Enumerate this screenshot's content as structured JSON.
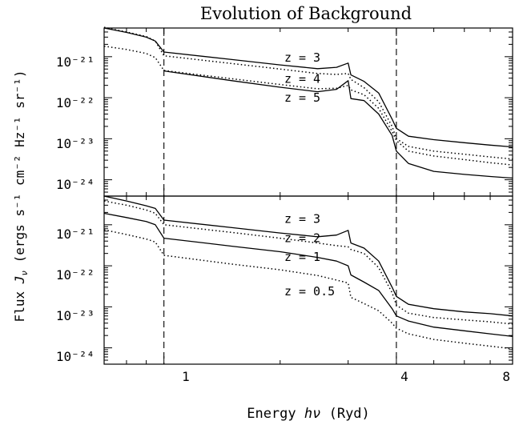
{
  "title": "Evolution of Background",
  "xlabel": {
    "prefix": "Energy ",
    "sym": "hν",
    "suffix": " (Ryd)"
  },
  "ylabel": {
    "prefix": "Flux ",
    "sym": "J",
    "sub": "ν",
    "units": " (ergs s⁻¹ cm⁻² Hz⁻¹ sr⁻¹)"
  },
  "x_ticks": [
    {
      "value": 1,
      "label": "1"
    },
    {
      "value": 4,
      "label": "4"
    },
    {
      "value": 8,
      "label": "8"
    }
  ],
  "y_tick_labels": [
    "10⁻²¹",
    "10⁻²²",
    "10⁻²³",
    "10⁻²⁴"
  ],
  "chart_data": [
    {
      "type": "line",
      "panel": "top",
      "x_scale": "log",
      "y_scale": "log",
      "xlim": [
        0.7,
        8
      ],
      "ylim": [
        4e-25,
        5e-21
      ],
      "reference_lines_x": [
        1,
        4
      ],
      "annotations": [
        {
          "text": "z = 3",
          "x": 2.05,
          "y": 7.5e-22
        },
        {
          "text": "z = 4",
          "x": 2.05,
          "y": 2.3e-22
        },
        {
          "text": "z = 5",
          "x": 2.05,
          "y": 8e-23
        }
      ],
      "series": [
        {
          "style": "solid",
          "points": [
            [
              0.7,
              5e-21
            ],
            [
              0.8,
              3.9e-21
            ],
            [
              0.9,
              3e-21
            ],
            [
              0.95,
              2.4e-21
            ],
            [
              1.0,
              1.3e-21
            ],
            [
              1.5,
              8.5e-22
            ],
            [
              2.0,
              6.3e-22
            ],
            [
              2.5,
              5.1e-22
            ],
            [
              2.8,
              5.5e-22
            ],
            [
              3.0,
              7e-22
            ],
            [
              3.05,
              3.6e-22
            ],
            [
              3.3,
              2.5e-22
            ],
            [
              3.6,
              1.3e-22
            ],
            [
              3.9,
              3e-23
            ],
            [
              4.0,
              1.8e-23
            ],
            [
              4.3,
              1.15e-23
            ],
            [
              5.0,
              9.5e-24
            ],
            [
              6.0,
              8e-24
            ],
            [
              7.0,
              7e-24
            ],
            [
              8.0,
              6.3e-24
            ]
          ]
        },
        {
          "style": "dotted",
          "points": [
            [
              0.7,
              5.2e-21
            ],
            [
              0.8,
              4e-21
            ],
            [
              0.9,
              3.1e-21
            ],
            [
              0.95,
              2.4e-21
            ],
            [
              1.0,
              1.05e-21
            ],
            [
              1.5,
              6.8e-22
            ],
            [
              2.0,
              5e-22
            ],
            [
              2.5,
              3.9e-22
            ],
            [
              2.8,
              3.7e-22
            ],
            [
              3.0,
              3.9e-22
            ],
            [
              3.05,
              2.8e-22
            ],
            [
              3.3,
              1.75e-22
            ],
            [
              3.6,
              8e-23
            ],
            [
              3.9,
              2e-23
            ],
            [
              4.0,
              1e-23
            ],
            [
              4.3,
              6.5e-24
            ],
            [
              5.0,
              5e-24
            ],
            [
              6.0,
              4.2e-24
            ],
            [
              7.0,
              3.6e-24
            ],
            [
              8.0,
              3.2e-24
            ]
          ]
        },
        {
          "style": "dotted",
          "points": [
            [
              0.7,
              1.8e-21
            ],
            [
              0.8,
              1.5e-21
            ],
            [
              0.9,
              1.2e-21
            ],
            [
              0.95,
              9.5e-22
            ],
            [
              1.0,
              4.6e-22
            ],
            [
              1.5,
              2.9e-22
            ],
            [
              2.0,
              2.1e-22
            ],
            [
              2.5,
              1.65e-22
            ],
            [
              2.8,
              1.7e-22
            ],
            [
              3.0,
              2e-22
            ],
            [
              3.05,
              1.55e-22
            ],
            [
              3.3,
              1.18e-22
            ],
            [
              3.6,
              5.5e-23
            ],
            [
              3.9,
              1.5e-23
            ],
            [
              4.0,
              9e-24
            ],
            [
              4.3,
              5e-24
            ],
            [
              5.0,
              3.8e-24
            ],
            [
              6.0,
              3.1e-24
            ],
            [
              7.0,
              2.6e-24
            ],
            [
              8.0,
              2.3e-24
            ]
          ]
        },
        {
          "style": "solid",
          "points": [
            [
              1.0,
              4.5e-22
            ],
            [
              1.5,
              2.6e-22
            ],
            [
              2.0,
              1.8e-22
            ],
            [
              2.5,
              1.4e-22
            ],
            [
              2.8,
              1.6e-22
            ],
            [
              3.0,
              2.6e-22
            ],
            [
              3.05,
              9.5e-23
            ],
            [
              3.3,
              8.5e-23
            ],
            [
              3.6,
              4e-23
            ],
            [
              3.9,
              1.2e-23
            ],
            [
              4.0,
              5e-24
            ],
            [
              4.3,
              2.5e-24
            ],
            [
              5.0,
              1.6e-24
            ],
            [
              6.0,
              1.35e-24
            ],
            [
              7.0,
              1.2e-24
            ],
            [
              8.0,
              1.1e-24
            ]
          ]
        }
      ]
    },
    {
      "type": "line",
      "panel": "bottom",
      "x_scale": "log",
      "y_scale": "log",
      "xlim": [
        0.7,
        8
      ],
      "ylim": [
        4e-25,
        5e-21
      ],
      "reference_lines_x": [
        1,
        4
      ],
      "annotations": [
        {
          "text": "z = 3",
          "x": 2.05,
          "y": 1.1e-21
        },
        {
          "text": "z = 2",
          "x": 2.05,
          "y": 3.8e-22
        },
        {
          "text": "z = 1",
          "x": 2.05,
          "y": 1.3e-22
        },
        {
          "text": "z = 0.5",
          "x": 2.05,
          "y": 1.9e-23
        }
      ],
      "series": [
        {
          "style": "solid",
          "points": [
            [
              0.7,
              5e-21
            ],
            [
              0.8,
              3.8e-21
            ],
            [
              0.9,
              2.9e-21
            ],
            [
              0.95,
              2.5e-21
            ],
            [
              1.0,
              1.3e-21
            ],
            [
              1.5,
              8.5e-22
            ],
            [
              2.0,
              6.3e-22
            ],
            [
              2.5,
              5.1e-22
            ],
            [
              2.8,
              5.6e-22
            ],
            [
              3.0,
              7.3e-22
            ],
            [
              3.05,
              3.6e-22
            ],
            [
              3.3,
              2.7e-22
            ],
            [
              3.6,
              1.3e-22
            ],
            [
              3.9,
              3e-23
            ],
            [
              4.0,
              1.8e-23
            ],
            [
              4.3,
              1.15e-23
            ],
            [
              5.0,
              9e-24
            ],
            [
              6.0,
              7.5e-24
            ],
            [
              7.0,
              6.8e-24
            ],
            [
              8.0,
              6e-24
            ]
          ]
        },
        {
          "style": "dotted",
          "points": [
            [
              0.7,
              3.8e-21
            ],
            [
              0.8,
              3e-21
            ],
            [
              0.9,
              2.3e-21
            ],
            [
              0.95,
              1.9e-21
            ],
            [
              1.0,
              1e-21
            ],
            [
              1.5,
              6.5e-22
            ],
            [
              2.0,
              4.7e-22
            ],
            [
              2.5,
              3.6e-22
            ],
            [
              2.8,
              3.1e-22
            ],
            [
              3.0,
              2.9e-22
            ],
            [
              3.05,
              2.5e-22
            ],
            [
              3.3,
              2e-22
            ],
            [
              3.6,
              9e-23
            ],
            [
              3.9,
              2.2e-23
            ],
            [
              4.0,
              1.1e-23
            ],
            [
              4.3,
              7e-24
            ],
            [
              5.0,
              5.5e-24
            ],
            [
              6.0,
              4.8e-24
            ],
            [
              7.0,
              4.3e-24
            ],
            [
              8.0,
              3.8e-24
            ]
          ]
        },
        {
          "style": "solid",
          "points": [
            [
              0.7,
              1.9e-21
            ],
            [
              0.8,
              1.5e-21
            ],
            [
              0.9,
              1.2e-21
            ],
            [
              0.95,
              1e-21
            ],
            [
              1.0,
              4.7e-22
            ],
            [
              1.5,
              3e-22
            ],
            [
              2.0,
              2.2e-22
            ],
            [
              2.5,
              1.6e-22
            ],
            [
              2.8,
              1.3e-22
            ],
            [
              3.0,
              1e-22
            ],
            [
              3.05,
              6e-23
            ],
            [
              3.3,
              4e-23
            ],
            [
              3.6,
              2.5e-23
            ],
            [
              3.9,
              9e-24
            ],
            [
              4.0,
              6e-24
            ],
            [
              4.3,
              4.5e-24
            ],
            [
              5.0,
              3.2e-24
            ],
            [
              6.0,
              2.6e-24
            ],
            [
              7.0,
              2.2e-24
            ],
            [
              8.0,
              1.9e-24
            ]
          ]
        },
        {
          "style": "dotted",
          "points": [
            [
              0.7,
              7.5e-22
            ],
            [
              0.8,
              5.8e-22
            ],
            [
              0.9,
              4.5e-22
            ],
            [
              0.95,
              3.8e-22
            ],
            [
              1.0,
              1.8e-22
            ],
            [
              1.5,
              1.1e-22
            ],
            [
              2.0,
              8e-23
            ],
            [
              2.5,
              5.8e-23
            ],
            [
              2.8,
              4.5e-23
            ],
            [
              3.0,
              3.8e-23
            ],
            [
              3.05,
              1.7e-23
            ],
            [
              3.3,
              1.2e-23
            ],
            [
              3.6,
              8e-24
            ],
            [
              3.9,
              4e-24
            ],
            [
              4.0,
              3e-24
            ],
            [
              4.3,
              2.2e-24
            ],
            [
              5.0,
              1.6e-24
            ],
            [
              6.0,
              1.3e-24
            ],
            [
              7.0,
              1.1e-24
            ],
            [
              8.0,
              9.5e-25
            ]
          ]
        }
      ]
    }
  ]
}
